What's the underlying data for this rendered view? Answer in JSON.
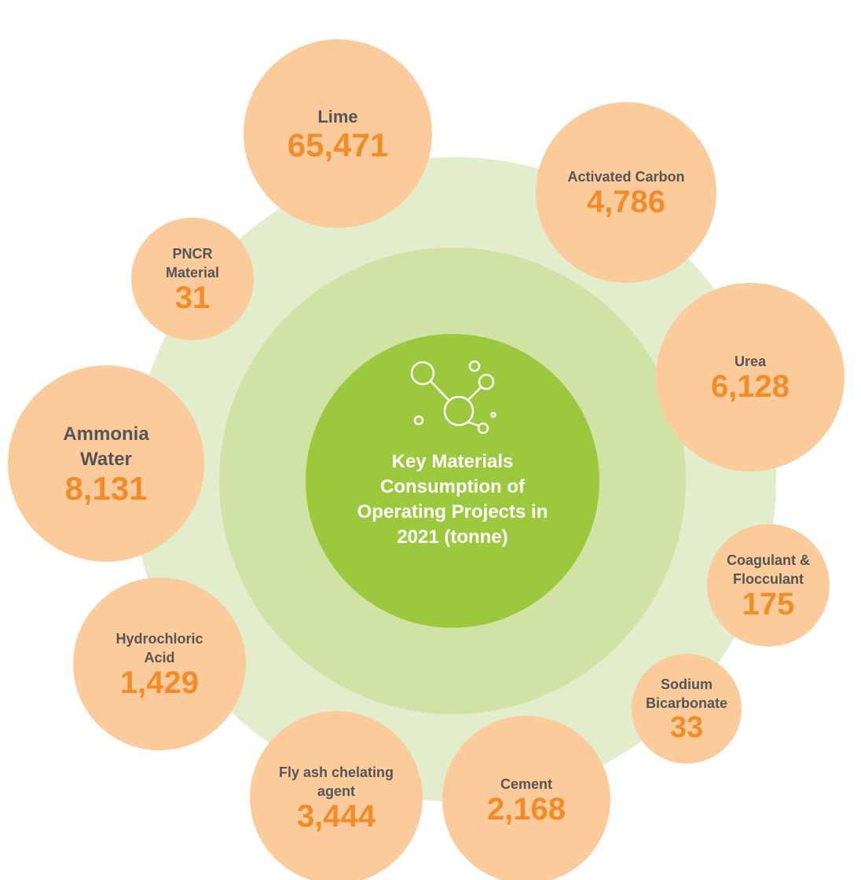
{
  "title": "Key Materials Consumption of Operating Projects in 2021 (tonne)",
  "items": [
    {
      "label": "Lime",
      "value": "65,471"
    },
    {
      "label": "Activated Carbon",
      "value": "4,786"
    },
    {
      "label": "Urea",
      "value": "6,128"
    },
    {
      "label": "Coagulant & Flocculant",
      "value": "175"
    },
    {
      "label": "Sodium Bicarbonate",
      "value": "33"
    },
    {
      "label": "Cement",
      "value": "2,168"
    },
    {
      "label": "Fly ash chelating agent",
      "value": "3,444"
    },
    {
      "label": "Hydrochloric Acid",
      "value": "1,429"
    },
    {
      "label": "Ammonia Water",
      "value": "8,131"
    },
    {
      "label": "PNCR Material",
      "value": "31"
    }
  ]
}
